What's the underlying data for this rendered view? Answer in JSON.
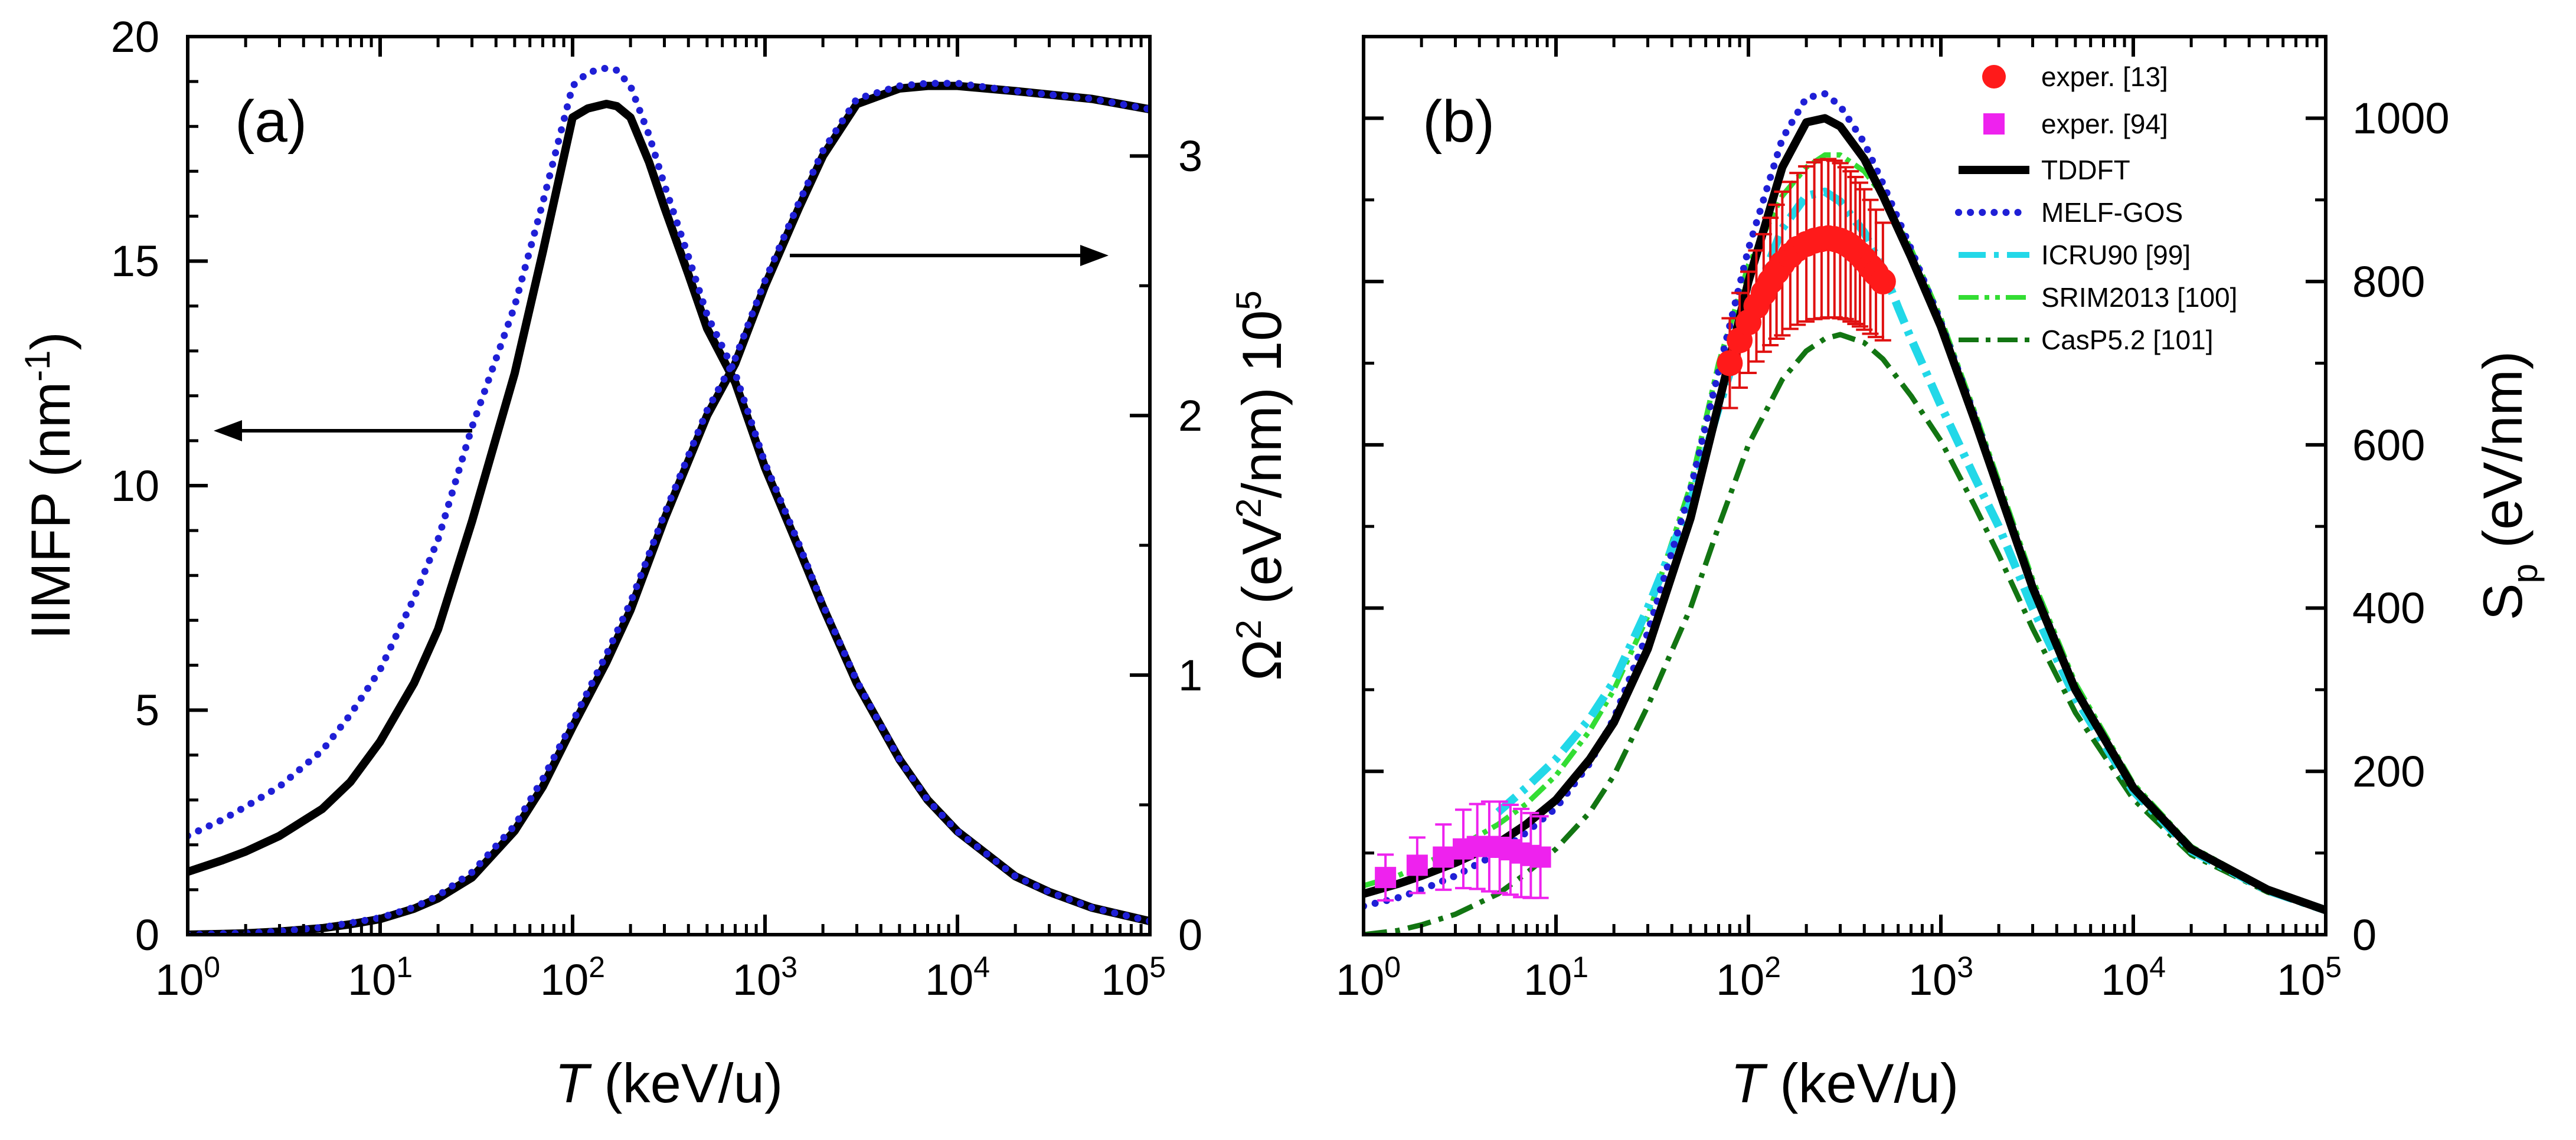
{
  "figure": {
    "panels": [
      {
        "panel_label": "(a)",
        "xlabel_italic": "T",
        "xlabel_units": " (keV/u)",
        "ylabel_left": "IIMFP (nm",
        "ylabel_left_sup": "-1",
        "ylabel_left_close": ")",
        "ylabel_right_a": "Ω",
        "ylabel_right_sup1": "2",
        "ylabel_right_b": " (eV",
        "ylabel_right_sup2": "2",
        "ylabel_right_c": "/nm) 10",
        "ylabel_right_sup3": "5"
      },
      {
        "panel_label": "(b)",
        "xlabel_italic": "T",
        "xlabel_units": " (keV/u)",
        "ylabel_right_a": "S",
        "ylabel_right_sub": "p",
        "ylabel_right_b": " (eV/nm)"
      }
    ]
  },
  "chart_data": [
    {
      "type": "line",
      "title": "(a)",
      "xlabel": "T (keV/u)",
      "xscale": "log",
      "xlim": [
        1,
        100000
      ],
      "xticks": [
        {
          "base": "10",
          "exp": "0"
        },
        {
          "base": "10",
          "exp": "1"
        },
        {
          "base": "10",
          "exp": "2"
        },
        {
          "base": "10",
          "exp": "3"
        },
        {
          "base": "10",
          "exp": "4"
        },
        {
          "base": "10",
          "exp": "5"
        }
      ],
      "ylabel": "IIMFP (nm-1)",
      "ylim": [
        0,
        20
      ],
      "yticks": [
        "0",
        "5",
        "10",
        "15",
        "20"
      ],
      "y2label": "Ω2 (eV2/nm) 10^5",
      "y2lim": [
        0,
        3.46
      ],
      "y2ticks": [
        "0",
        "1",
        "2",
        "3"
      ],
      "series": [
        {
          "name": "IIMFP TDDFT",
          "axis": "left",
          "color": "#000000",
          "style": "solid",
          "x": [
            1,
            1.5,
            2,
            3,
            5,
            7,
            10,
            15,
            20,
            30,
            50,
            70,
            100,
            120,
            150,
            170,
            200,
            250,
            300,
            400,
            500,
            700,
            1000,
            1500,
            2000,
            3000,
            5000,
            7000,
            10000,
            20000,
            30000,
            50000,
            100000
          ],
          "y": [
            1.4,
            1.65,
            1.85,
            2.2,
            2.8,
            3.4,
            4.3,
            5.6,
            6.8,
            9.2,
            12.5,
            15.2,
            18.2,
            18.4,
            18.5,
            18.45,
            18.2,
            17.2,
            16.2,
            14.7,
            13.5,
            12.3,
            10.4,
            8.6,
            7.3,
            5.6,
            3.9,
            3.0,
            2.3,
            1.3,
            0.95,
            0.6,
            0.3
          ]
        },
        {
          "name": "IIMFP MELF-GOS",
          "axis": "left",
          "color": "#1f1fd6",
          "style": "dotted",
          "x": [
            1,
            1.5,
            2,
            3,
            5,
            7,
            10,
            15,
            20,
            30,
            50,
            70,
            100,
            120,
            150,
            170,
            200,
            250,
            300,
            400,
            500,
            700,
            1000,
            1500,
            2000,
            3000,
            5000,
            7000,
            10000,
            20000,
            30000,
            50000,
            100000
          ],
          "y": [
            2.2,
            2.55,
            2.85,
            3.3,
            4.1,
            4.9,
            5.9,
            7.5,
            8.8,
            11.3,
            14.0,
            16.3,
            18.9,
            19.2,
            19.3,
            19.25,
            18.9,
            17.8,
            16.7,
            15.1,
            13.8,
            12.5,
            10.5,
            8.7,
            7.35,
            5.65,
            3.9,
            3.0,
            2.3,
            1.3,
            0.95,
            0.6,
            0.3
          ]
        },
        {
          "name": "Ω2 TDDFT",
          "axis": "right",
          "color": "#000000",
          "style": "solid",
          "x": [
            1,
            2,
            3,
            5,
            7,
            10,
            15,
            20,
            30,
            50,
            70,
            100,
            150,
            200,
            300,
            500,
            700,
            1000,
            1500,
            2000,
            3000,
            5000,
            7000,
            10000,
            20000,
            50000,
            100000
          ],
          "y": [
            0,
            0.005,
            0.012,
            0.025,
            0.04,
            0.06,
            0.1,
            0.14,
            0.22,
            0.4,
            0.57,
            0.8,
            1.05,
            1.25,
            1.6,
            2.0,
            2.2,
            2.5,
            2.8,
            3.0,
            3.2,
            3.26,
            3.27,
            3.27,
            3.25,
            3.22,
            3.18
          ]
        },
        {
          "name": "Ω2 MELF-GOS",
          "axis": "right",
          "color": "#1f1fd6",
          "style": "dotted",
          "x": [
            1,
            2,
            3,
            5,
            7,
            10,
            15,
            20,
            30,
            50,
            70,
            100,
            150,
            200,
            300,
            500,
            700,
            1000,
            1500,
            2000,
            3000,
            5000,
            7000,
            10000,
            20000,
            50000,
            100000
          ],
          "y": [
            0,
            0.006,
            0.013,
            0.028,
            0.045,
            0.065,
            0.105,
            0.15,
            0.24,
            0.42,
            0.6,
            0.82,
            1.08,
            1.28,
            1.62,
            2.02,
            2.22,
            2.52,
            2.82,
            3.02,
            3.22,
            3.27,
            3.28,
            3.28,
            3.25,
            3.22,
            3.18
          ]
        }
      ],
      "annotations": [
        "arrow pointing left to IIMFP axis",
        "arrow pointing right to Ω2 axis"
      ]
    },
    {
      "type": "line",
      "title": "(b)",
      "xlabel": "T (keV/u)",
      "xscale": "log",
      "xlim": [
        1,
        100000
      ],
      "xticks": [
        {
          "base": "10",
          "exp": "0"
        },
        {
          "base": "10",
          "exp": "1"
        },
        {
          "base": "10",
          "exp": "2"
        },
        {
          "base": "10",
          "exp": "3"
        },
        {
          "base": "10",
          "exp": "4"
        },
        {
          "base": "10",
          "exp": "5"
        }
      ],
      "ylabel": "Sp (eV/nm)",
      "ylim": [
        0,
        1100
      ],
      "yticks": [
        "0",
        "200",
        "400",
        "600",
        "800",
        "1000"
      ],
      "legend": {
        "position": "top-right"
      },
      "series": [
        {
          "name": "TDDFT",
          "legend_label": "TDDFT",
          "kind": "line",
          "color": "#000000",
          "style": "solid",
          "x": [
            1,
            1.5,
            2,
            3,
            5,
            7,
            10,
            15,
            20,
            30,
            50,
            70,
            100,
            150,
            200,
            250,
            300,
            400,
            500,
            700,
            1000,
            1500,
            2000,
            3000,
            5000,
            10000,
            20000,
            50000,
            100000
          ],
          "y": [
            50,
            62,
            72,
            88,
            112,
            135,
            165,
            215,
            260,
            350,
            510,
            650,
            800,
            940,
            995,
            1000,
            990,
            950,
            905,
            830,
            745,
            630,
            545,
            425,
            300,
            180,
            105,
            55,
            30
          ]
        },
        {
          "name": "MELF-GOS",
          "legend_label": "MELF-GOS",
          "kind": "line",
          "color": "#1f1fd6",
          "style": "dotted",
          "x": [
            1,
            1.5,
            2,
            3,
            5,
            7,
            10,
            15,
            20,
            30,
            50,
            70,
            100,
            150,
            200,
            250,
            300,
            400,
            500,
            700,
            1000,
            1500,
            2000,
            3000,
            5000,
            10000,
            20000,
            50000,
            100000
          ],
          "y": [
            35,
            45,
            55,
            72,
            100,
            125,
            155,
            210,
            265,
            370,
            545,
            690,
            840,
            975,
            1025,
            1030,
            1015,
            970,
            920,
            840,
            750,
            635,
            548,
            428,
            302,
            181,
            105,
            55,
            30
          ]
        },
        {
          "name": "ICRU90 [99]",
          "legend_label": "ICRU90 [99]",
          "kind": "line",
          "color": "#22d8e8",
          "style": "dashdot",
          "width": 14,
          "x": [
            5,
            7,
            10,
            15,
            20,
            30,
            50,
            70,
            100,
            150,
            200,
            250,
            300,
            400,
            500,
            600,
            700,
            1000,
            1500,
            2000,
            3000,
            5000,
            10000,
            20000,
            50000,
            100000
          ],
          "y": [
            150,
            180,
            215,
            265,
            310,
            400,
            530,
            645,
            760,
            865,
            905,
            910,
            898,
            860,
            815,
            768,
            730,
            648,
            560,
            500,
            400,
            290,
            176,
            103,
            54,
            30
          ]
        },
        {
          "name": "SRIM2013 [100]",
          "legend_label": "SRIM2013 [100]",
          "kind": "line",
          "color": "#33dd33",
          "style": "dashdotdot",
          "x": [
            1,
            1.5,
            2,
            3,
            5,
            7,
            10,
            15,
            20,
            30,
            50,
            70,
            100,
            150,
            200,
            250,
            300,
            400,
            500,
            700,
            1000,
            1500,
            2000,
            3000,
            5000,
            10000,
            20000,
            50000,
            100000
          ],
          "y": [
            60,
            72,
            85,
            105,
            135,
            160,
            195,
            250,
            300,
            390,
            550,
            700,
            820,
            905,
            940,
            955,
            955,
            935,
            905,
            840,
            755,
            640,
            555,
            435,
            308,
            185,
            108,
            56,
            31
          ]
        },
        {
          "name": "CasP5.2 [101]",
          "legend_label": "CasP5.2 [101]",
          "kind": "line",
          "color": "#127512",
          "style": "dashdot",
          "x": [
            1,
            1.5,
            2,
            3,
            5,
            7,
            10,
            15,
            20,
            30,
            50,
            70,
            100,
            150,
            200,
            250,
            300,
            400,
            500,
            700,
            1000,
            1500,
            2000,
            3000,
            5000,
            10000,
            20000,
            50000,
            100000
          ],
          "y": [
            0,
            5,
            12,
            25,
            50,
            75,
            105,
            150,
            195,
            280,
            400,
            500,
            600,
            680,
            715,
            730,
            735,
            725,
            705,
            660,
            605,
            525,
            465,
            375,
            272,
            166,
            98,
            52,
            29
          ]
        },
        {
          "name": "exper. [13]",
          "legend_label": "exper. [13]",
          "kind": "points",
          "marker": "circle",
          "color": "#ff1a1a",
          "errcolor": "#e01010",
          "x": [
            80,
            90,
            100,
            110,
            120,
            130,
            140,
            150,
            165,
            180,
            200,
            220,
            240,
            260,
            280,
            300,
            320,
            340,
            360,
            380,
            400,
            430,
            460,
            500
          ],
          "y": [
            700,
            728,
            750,
            770,
            786,
            800,
            812,
            822,
            832,
            840,
            846,
            850,
            852,
            853,
            852,
            850,
            847,
            843,
            838,
            833,
            827,
            818,
            810,
            800
          ],
          "err": [
            55,
            58,
            62,
            68,
            72,
            78,
            82,
            88,
            90,
            93,
            95,
            96,
            97,
            97,
            96,
            95,
            93,
            92,
            90,
            88,
            86,
            82,
            78,
            72
          ]
        },
        {
          "name": "exper. [94]",
          "legend_label": "exper. [94]",
          "kind": "points",
          "marker": "square",
          "color": "#ee22ee",
          "errcolor": "#ee22ee",
          "x": [
            1.3,
            1.9,
            2.6,
            3.3,
            3.9,
            4.5,
            5.1,
            5.8,
            6.6,
            7.4,
            8.3
          ],
          "y": [
            70,
            85,
            95,
            105,
            108,
            108,
            107,
            104,
            100,
            97,
            95
          ],
          "err": [
            28,
            34,
            40,
            48,
            52,
            55,
            56,
            55,
            54,
            52,
            50
          ]
        }
      ]
    }
  ]
}
